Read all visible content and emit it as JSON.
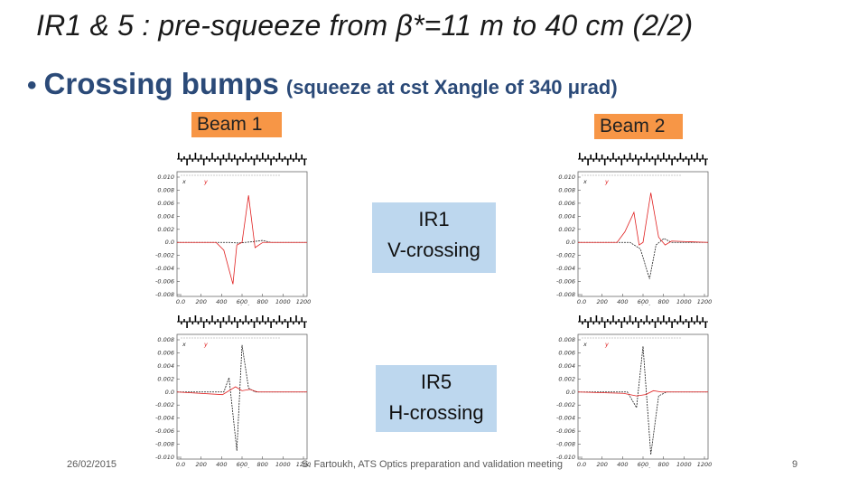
{
  "slide": {
    "title": "IR1 & 5 : pre-squeeze from β*=11 m to 40 cm (2/2)",
    "bullet_main": "Crossing bumps",
    "bullet_sub": "(squeeze at cst Xangle of 340 μrad)",
    "beam1_label": "Beam 1",
    "beam2_label": "Beam 2",
    "ir1_box": {
      "line1": "IR1",
      "line2": "V-crossing"
    },
    "ir5_box": {
      "line1": "IR5",
      "line2": "H-crossing"
    },
    "footer": {
      "date": "26/02/2015",
      "center": "S. Fartoukh,  ATS Optics preparation and validation meeting",
      "page": "9"
    }
  },
  "plots": {
    "top_ticks": [
      "0.010",
      "0.008",
      "0.006",
      "0.004",
      "0.002",
      "0.0",
      "-0.002",
      "-0.004",
      "-0.006",
      "-0.008"
    ],
    "bottom_ticks": [
      "0.008",
      "0.006",
      "0.004",
      "0.002",
      "0.0",
      "-0.002",
      "-0.004",
      "-0.006",
      "-0.008",
      "-0.010"
    ],
    "x_ticks": [
      "0.0",
      "200",
      "400",
      "600",
      "800",
      "1000",
      "1200"
    ],
    "x_unit": "s (m)",
    "legend_x": "x",
    "legend_y": "y",
    "colors": {
      "x_series": "#222222",
      "y_series": "#e02020"
    }
  }
}
